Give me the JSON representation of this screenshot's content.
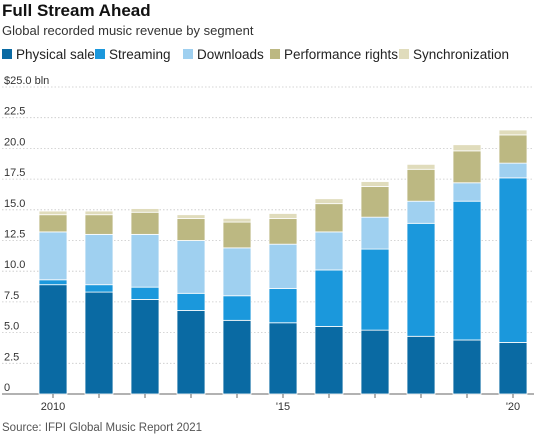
{
  "chart_data": {
    "type": "bar",
    "stacked": true,
    "title": "Full Stream Ahead",
    "subtitle": "Global recorded music revenue by segment",
    "source": "Source: IFPI Global Music Report 2021",
    "y_unit_label": "$25.0 bln",
    "ylim": [
      0,
      25
    ],
    "y_ticks": [
      "0",
      "2.5",
      "5.0",
      "7.5",
      "10.0",
      "12.5",
      "15.0",
      "17.5",
      "20.0",
      "22.5",
      "$25.0 bln"
    ],
    "x": [
      2010,
      2011,
      2012,
      2013,
      2014,
      2015,
      2016,
      2017,
      2018,
      2019,
      2020
    ],
    "x_tick_labels": [
      {
        "year": 2010,
        "label": "2010"
      },
      {
        "year": 2015,
        "label": "'15"
      },
      {
        "year": 2020,
        "label": "'20"
      }
    ],
    "grid": true,
    "legend_position": "top",
    "series": [
      {
        "name": "Physical sales",
        "color": "#0a6aa3",
        "values": [
          8.9,
          8.3,
          7.7,
          6.8,
          6.0,
          5.8,
          5.5,
          5.2,
          4.7,
          4.4,
          4.2
        ]
      },
      {
        "name": "Streaming",
        "color": "#1b98dc",
        "values": [
          0.4,
          0.6,
          1.0,
          1.4,
          2.0,
          2.8,
          4.6,
          6.6,
          9.2,
          11.3,
          13.4
        ]
      },
      {
        "name": "Downloads",
        "color": "#9fd0f0",
        "values": [
          3.9,
          4.1,
          4.3,
          4.3,
          3.9,
          3.6,
          3.1,
          2.6,
          1.8,
          1.5,
          1.2
        ]
      },
      {
        "name": "Performance rights",
        "color": "#bcb882",
        "values": [
          1.4,
          1.6,
          1.8,
          1.8,
          2.1,
          2.1,
          2.3,
          2.5,
          2.6,
          2.6,
          2.3
        ]
      },
      {
        "name": "Synchronization",
        "color": "#e0dcbc",
        "values": [
          0.3,
          0.3,
          0.3,
          0.3,
          0.3,
          0.4,
          0.4,
          0.4,
          0.4,
          0.5,
          0.4
        ]
      }
    ]
  }
}
